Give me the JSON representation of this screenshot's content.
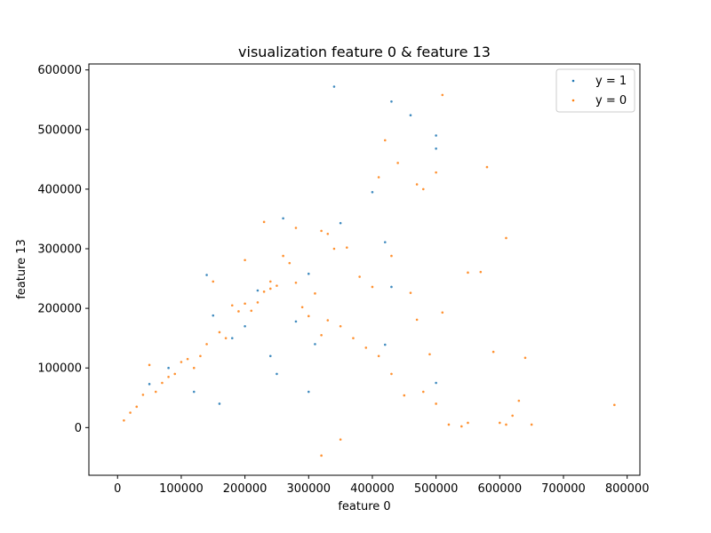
{
  "chart_data": {
    "type": "scatter",
    "title": "visualization feature 0 & feature 13",
    "xlabel": "feature 0",
    "ylabel": "feature 13",
    "xlim": [
      -45000,
      820000
    ],
    "ylim": [
      -80000,
      610000
    ],
    "xticks": [
      0,
      100000,
      200000,
      300000,
      400000,
      500000,
      600000,
      700000,
      800000
    ],
    "xtick_labels": [
      "0",
      "100000",
      "200000",
      "300000",
      "400000",
      "500000",
      "600000",
      "700000",
      "800000"
    ],
    "yticks": [
      0,
      100000,
      200000,
      300000,
      400000,
      500000,
      600000
    ],
    "ytick_labels": [
      "0",
      "100000",
      "200000",
      "300000",
      "400000",
      "500000",
      "600000"
    ],
    "grid": false,
    "legend_position": "top-right",
    "colors": {
      "y1": "#1f77b4",
      "y0": "#ff7f0e"
    },
    "series": [
      {
        "name": "y = 1",
        "color": "#1f77b4",
        "x": [
          340000,
          430000,
          460000,
          500000,
          500000,
          400000,
          260000,
          350000,
          420000,
          140000,
          430000,
          300000,
          280000,
          150000,
          420000,
          80000,
          50000,
          500000,
          300000,
          220000,
          200000,
          180000,
          240000,
          250000,
          120000,
          160000,
          310000
        ],
        "y": [
          572000,
          547000,
          524000,
          490000,
          468000,
          395000,
          351000,
          343000,
          311000,
          256000,
          236000,
          258000,
          178000,
          188000,
          139000,
          100000,
          73000,
          75000,
          60000,
          230000,
          170000,
          150000,
          120000,
          90000,
          60000,
          40000,
          140000
        ]
      },
      {
        "name": "y = 0",
        "color": "#ff7f0e",
        "x": [
          510000,
          580000,
          420000,
          440000,
          410000,
          470000,
          480000,
          500000,
          610000,
          550000,
          570000,
          590000,
          640000,
          630000,
          620000,
          650000,
          780000,
          610000,
          600000,
          520000,
          540000,
          550000,
          230000,
          280000,
          330000,
          320000,
          340000,
          360000,
          380000,
          400000,
          430000,
          460000,
          470000,
          490000,
          510000,
          200000,
          200000,
          210000,
          220000,
          230000,
          240000,
          240000,
          250000,
          260000,
          270000,
          280000,
          290000,
          300000,
          310000,
          320000,
          330000,
          350000,
          370000,
          390000,
          410000,
          430000,
          450000,
          480000,
          500000,
          150000,
          160000,
          170000,
          180000,
          190000,
          140000,
          130000,
          120000,
          110000,
          100000,
          90000,
          80000,
          70000,
          60000,
          50000,
          40000,
          30000,
          20000,
          10000,
          320000,
          350000
        ],
        "y": [
          558000,
          437000,
          482000,
          444000,
          420000,
          408000,
          400000,
          428000,
          318000,
          260000,
          261000,
          127000,
          117000,
          45000,
          20000,
          5000,
          38000,
          5000,
          8000,
          5000,
          2000,
          8000,
          345000,
          335000,
          325000,
          330000,
          300000,
          302000,
          253000,
          236000,
          288000,
          226000,
          181000,
          123000,
          193000,
          281000,
          208000,
          196000,
          210000,
          228000,
          245000,
          233000,
          238000,
          288000,
          276000,
          243000,
          202000,
          187000,
          225000,
          155000,
          180000,
          170000,
          150000,
          134000,
          120000,
          90000,
          54000,
          60000,
          40000,
          245000,
          160000,
          150000,
          205000,
          195000,
          140000,
          120000,
          100000,
          115000,
          110000,
          90000,
          85000,
          75000,
          60000,
          105000,
          55000,
          35000,
          25000,
          12000,
          -47000,
          -20000
        ]
      }
    ]
  }
}
